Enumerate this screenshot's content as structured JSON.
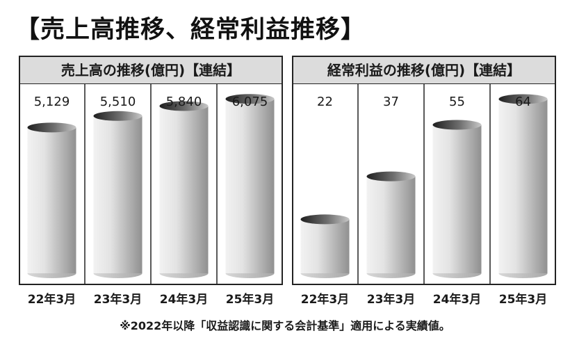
{
  "title": "【売上高推移、経常利益推移】",
  "footnote": "※2022年以降「収益認識に関する会計基準」適用による実績値。",
  "colors": {
    "bar_light": "#f2f2f2",
    "bar_dark": "#909090",
    "top_dark": "#1f1f1f",
    "top_mid": "#6e6e6e",
    "header_bg": "#dcdcdc",
    "border": "#222222"
  },
  "chart_data": [
    {
      "type": "bar",
      "title": "売上高の推移(億円)【連結】",
      "categories": [
        "22年3月",
        "23年3月",
        "24年3月",
        "25年3月"
      ],
      "values": [
        5129,
        5510,
        5840,
        6075
      ],
      "value_labels": [
        "5,129",
        "5,510",
        "5,840",
        "6,075"
      ],
      "ylim": [
        0,
        6450
      ]
    },
    {
      "type": "bar",
      "title": "経常利益の推移(億円)【連結】",
      "categories": [
        "22年3月",
        "23年3月",
        "24年3月",
        "25年3月"
      ],
      "values": [
        22,
        37,
        55,
        64
      ],
      "value_labels": [
        "22",
        "37",
        "55",
        "64"
      ],
      "ylim": [
        0,
        68
      ]
    }
  ]
}
